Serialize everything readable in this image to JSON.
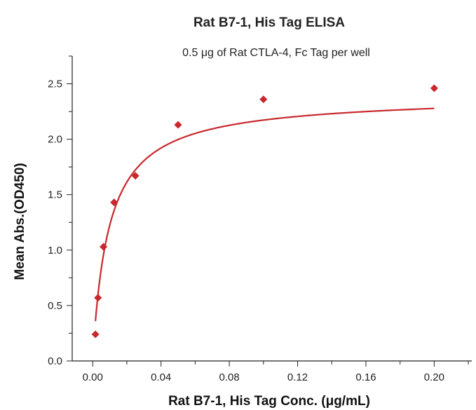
{
  "chart_data": {
    "type": "scatter",
    "title": "Rat B7-1, His Tag ELISA",
    "subtitle": "0.5 μg of Rat CTLA-4, Fc Tag per well",
    "xlabel": "Rat B7-1, His Tag Conc. (μg/mL)",
    "ylabel": "Mean Abs.(OD450)",
    "xlim": [
      -0.012,
      0.222
    ],
    "ylim": [
      0,
      2.75
    ],
    "x_ticks": [
      0.0,
      0.04,
      0.08,
      0.12,
      0.16,
      0.2
    ],
    "x_tick_labels": [
      "0.00",
      "0.04",
      "0.08",
      "0.12",
      "0.16",
      "0.20"
    ],
    "y_ticks": [
      0.0,
      0.5,
      1.0,
      1.5,
      2.0,
      2.5
    ],
    "y_tick_labels": [
      "0.0",
      "0.5",
      "1.0",
      "1.5",
      "2.0",
      "2.5"
    ],
    "grid": false,
    "series": [
      {
        "color": "#c8282d",
        "marker": "diamond",
        "fit": "hyperbolic",
        "x": [
          0.0016,
          0.0031,
          0.0063,
          0.0125,
          0.025,
          0.05,
          0.1,
          0.2
        ],
        "y": [
          0.24,
          0.57,
          1.03,
          1.43,
          1.67,
          2.13,
          2.36,
          2.46
        ]
      }
    ]
  }
}
